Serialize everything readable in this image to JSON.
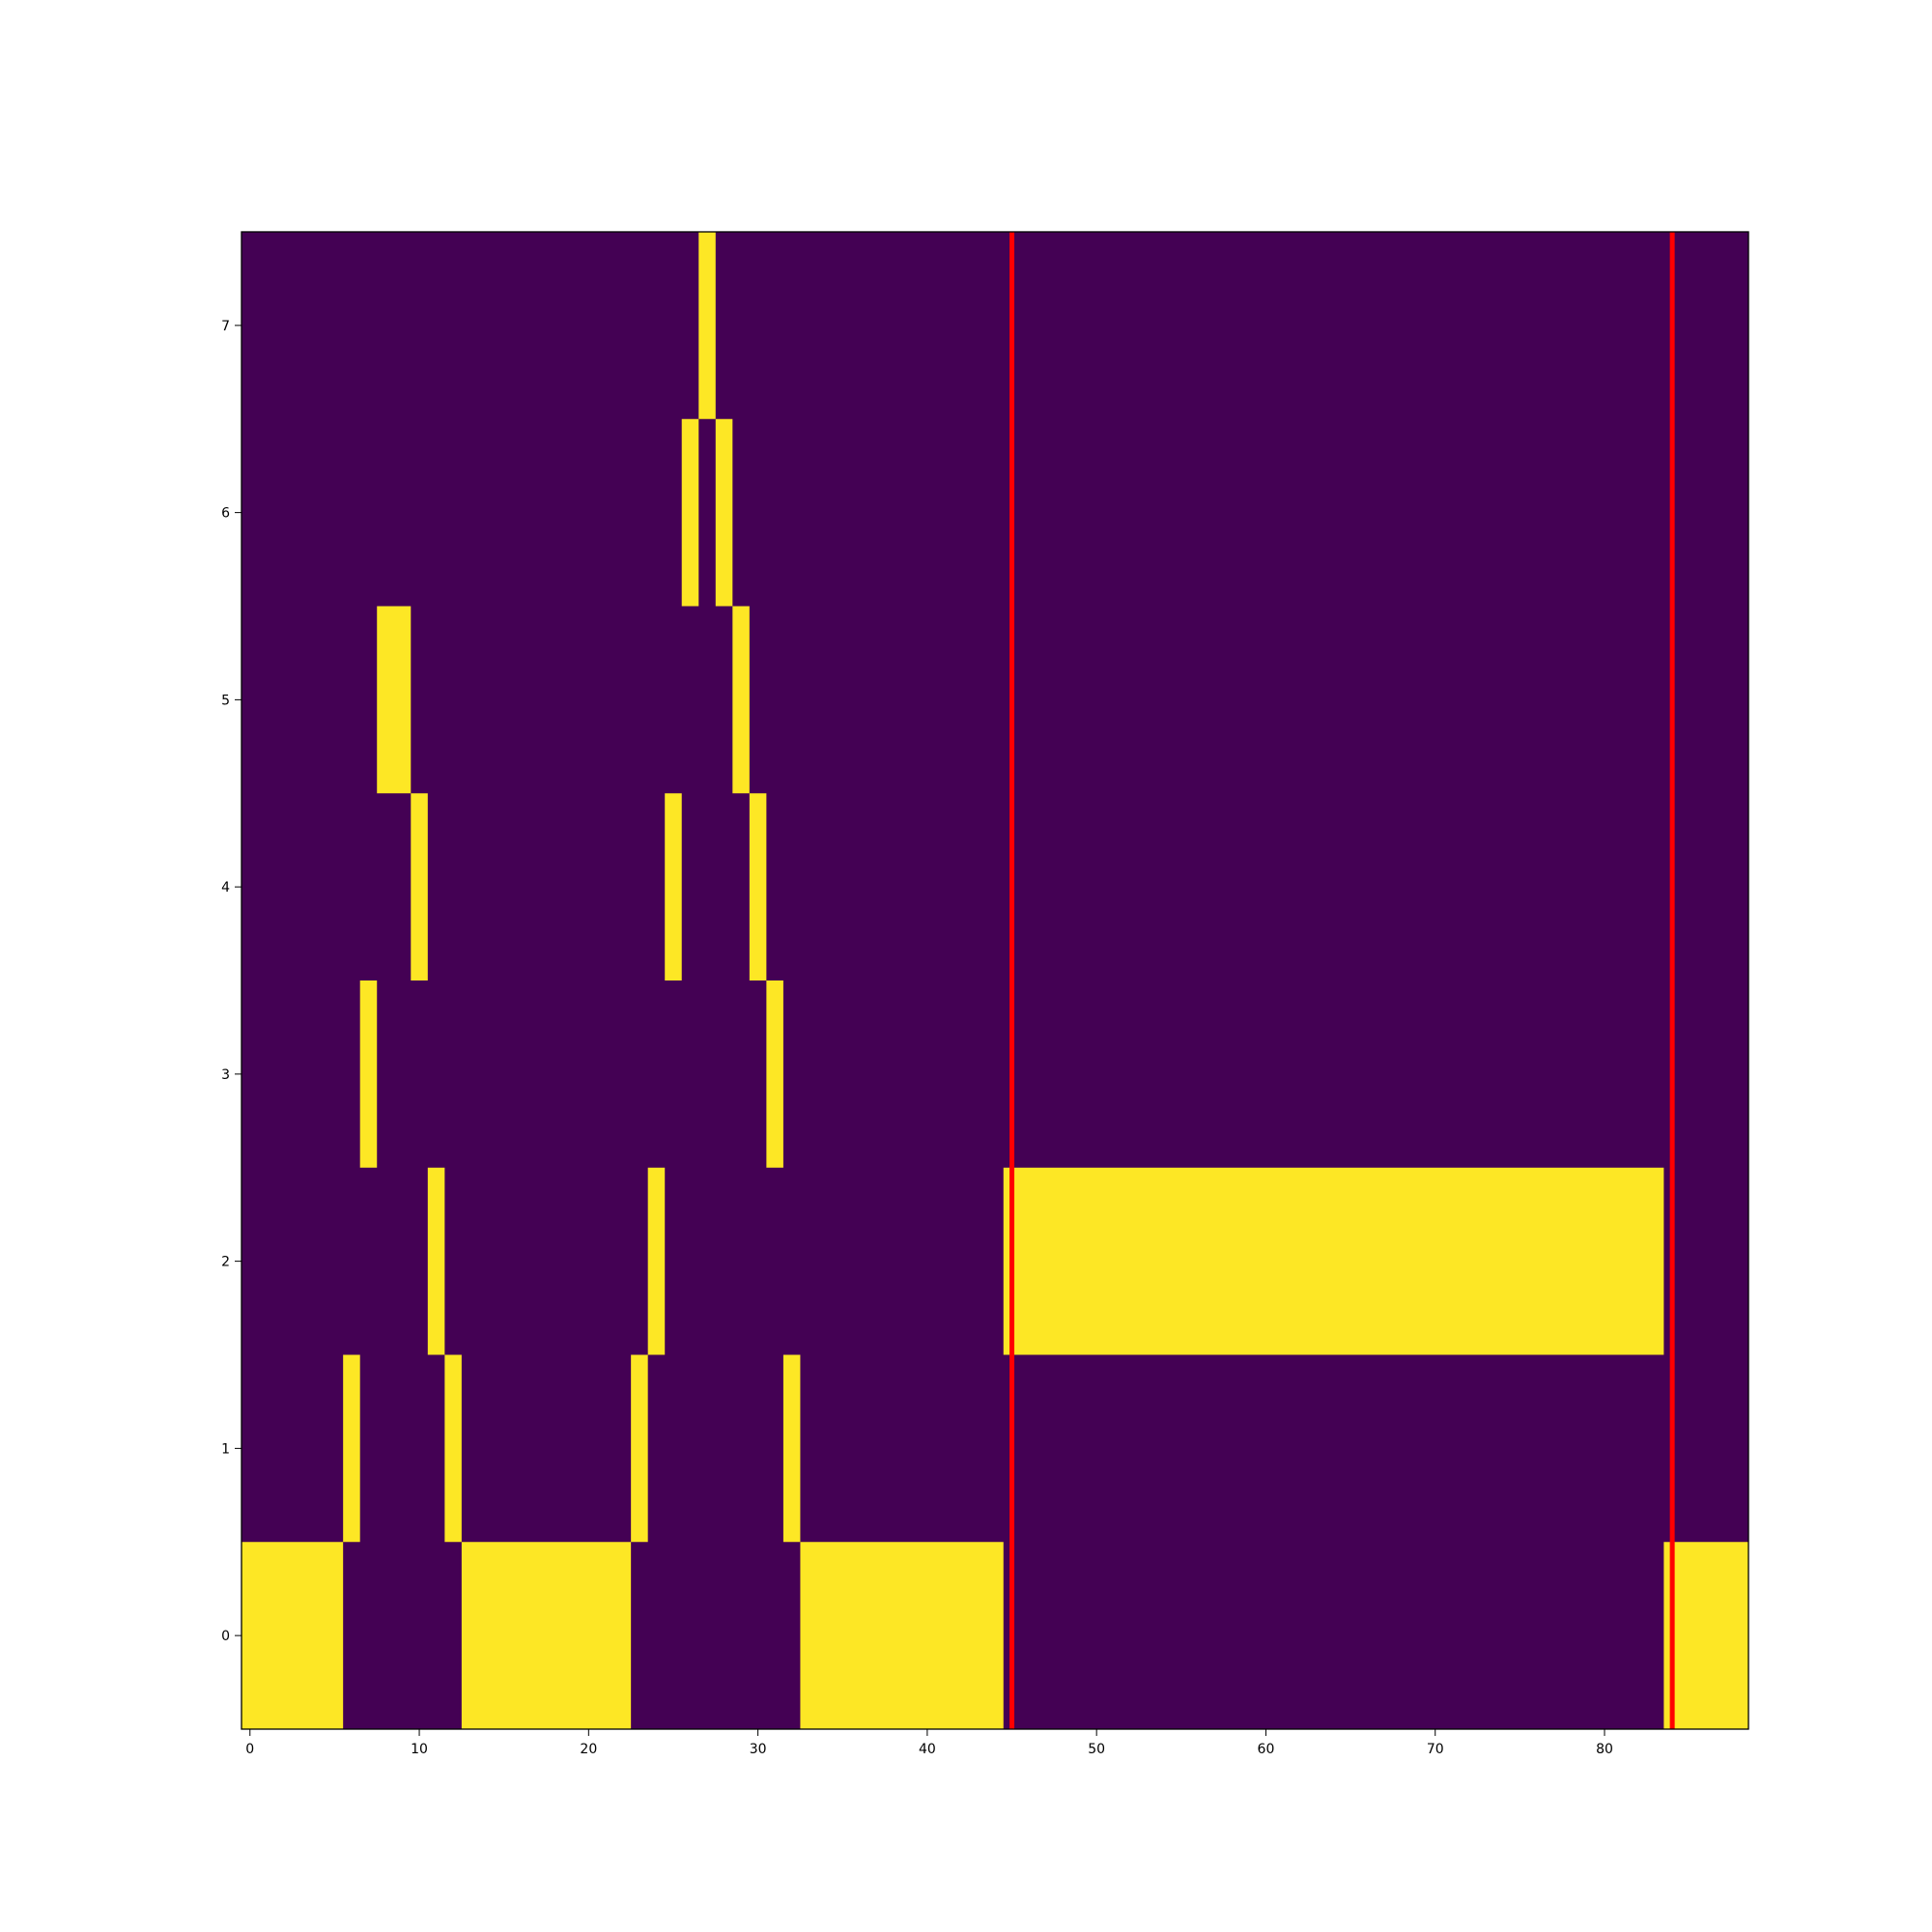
{
  "chart_data": {
    "type": "heatmap",
    "title": "",
    "xlabel": "",
    "ylabel": "",
    "xlim": [
      -0.5,
      88.5
    ],
    "ylim": [
      -0.5,
      7.5
    ],
    "x_ticks": [
      0,
      10,
      20,
      30,
      40,
      50,
      60,
      70,
      80
    ],
    "y_ticks": [
      0,
      1,
      2,
      3,
      4,
      5,
      6,
      7
    ],
    "colors": {
      "off": "#440154",
      "on": "#fde725",
      "vline": "#ff0000"
    },
    "grid": false,
    "active_cells": [
      {
        "row": 0,
        "from": 0,
        "to": 5
      },
      {
        "row": 0,
        "from": 13,
        "to": 22
      },
      {
        "row": 0,
        "from": 33,
        "to": 44
      },
      {
        "row": 0,
        "from": 84,
        "to": 88
      },
      {
        "row": 1,
        "from": 6,
        "to": 6
      },
      {
        "row": 1,
        "from": 12,
        "to": 12
      },
      {
        "row": 1,
        "from": 23,
        "to": 23
      },
      {
        "row": 1,
        "from": 32,
        "to": 32
      },
      {
        "row": 2,
        "from": 11,
        "to": 11
      },
      {
        "row": 2,
        "from": 24,
        "to": 24
      },
      {
        "row": 2,
        "from": 45,
        "to": 83
      },
      {
        "row": 3,
        "from": 7,
        "to": 7
      },
      {
        "row": 3,
        "from": 31,
        "to": 31
      },
      {
        "row": 4,
        "from": 10,
        "to": 10
      },
      {
        "row": 4,
        "from": 25,
        "to": 25
      },
      {
        "row": 4,
        "from": 30,
        "to": 30
      },
      {
        "row": 5,
        "from": 8,
        "to": 9
      },
      {
        "row": 5,
        "from": 29,
        "to": 29
      },
      {
        "row": 6,
        "from": 26,
        "to": 26
      },
      {
        "row": 6,
        "from": 28,
        "to": 28
      },
      {
        "row": 7,
        "from": 27,
        "to": 27
      }
    ],
    "vertical_lines": [
      45,
      84
    ]
  }
}
